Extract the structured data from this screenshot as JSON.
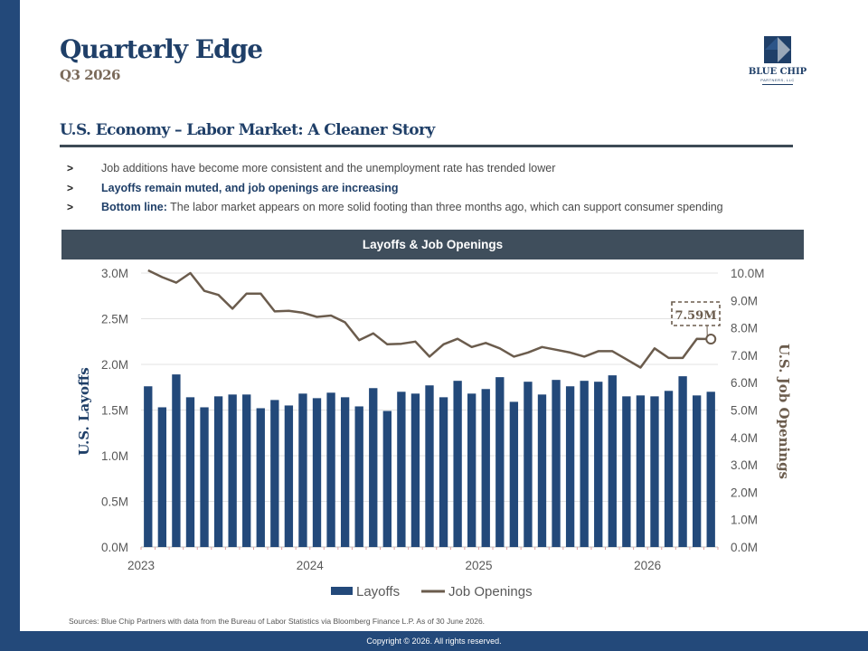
{
  "header": {
    "title": "Quarterly Edge",
    "subtitle": "Q3 2026",
    "logo_name": "BLUE CHIP",
    "logo_sub": "PARTNERS, LLC"
  },
  "section": {
    "title": "U.S. Economy – Labor Market: A Cleaner Story"
  },
  "bullets": [
    {
      "marker": ">",
      "lead": "",
      "text": "Job additions have become more consistent and the unemployment rate has trended lower"
    },
    {
      "marker": ">",
      "lead": "Layoffs remain muted, and job openings are increasing",
      "text": ""
    },
    {
      "marker": ">",
      "lead": "Bottom line:",
      "text": " The labor market appears on more solid footing than three months ago, which can support consumer spending"
    }
  ],
  "chart_header": "Layoffs & Job Openings",
  "sources": "Sources: Blue Chip Partners with data from the Bureau of Labor Statistics via Bloomberg Finance L.P. As of 30 June 2026.",
  "footer": "Copyright © 2026. All rights reserved.",
  "colors": {
    "brand": "#23497a",
    "bars": "#23497a",
    "line": "#6b5c4d",
    "header_band": "#3f4e5c"
  },
  "chart_data": {
    "type": "bar",
    "title": "Layoffs & Job Openings",
    "x_start": "2023-01",
    "frequency": "monthly",
    "x_ticks": [
      "2023",
      "2024",
      "2025",
      "2026"
    ],
    "y_left": {
      "label": "U.S. Layoffs",
      "ticks": [
        "0.0M",
        "0.5M",
        "1.0M",
        "1.5M",
        "2.0M",
        "2.5M",
        "3.0M"
      ],
      "range": [
        0,
        3.0
      ]
    },
    "y_right": {
      "label": "U.S. Job Openings",
      "ticks": [
        "0.0M",
        "1.0M",
        "2.0M",
        "3.0M",
        "4.0M",
        "5.0M",
        "6.0M",
        "7.0M",
        "8.0M",
        "9.0M",
        "10.0M"
      ],
      "range": [
        0,
        10.0
      ]
    },
    "series": [
      {
        "name": "Layoffs",
        "type": "bar",
        "axis": "left",
        "values": [
          1.76,
          1.53,
          1.89,
          1.64,
          1.53,
          1.65,
          1.67,
          1.67,
          1.52,
          1.61,
          1.55,
          1.68,
          1.63,
          1.69,
          1.64,
          1.54,
          1.74,
          1.49,
          1.7,
          1.68,
          1.77,
          1.64,
          1.82,
          1.68,
          1.73,
          1.86,
          1.59,
          1.81,
          1.67,
          1.83,
          1.76,
          1.82,
          1.81,
          1.88,
          1.65,
          1.66,
          1.65,
          1.71,
          1.87,
          1.66,
          1.7
        ]
      },
      {
        "name": "Job Openings",
        "type": "line",
        "axis": "right",
        "values": [
          10.1,
          9.85,
          9.65,
          10.0,
          9.35,
          9.2,
          8.7,
          9.25,
          9.25,
          8.6,
          8.62,
          8.55,
          8.4,
          8.45,
          8.2,
          7.55,
          7.8,
          7.4,
          7.42,
          7.5,
          6.95,
          7.4,
          7.6,
          7.3,
          7.45,
          7.25,
          6.95,
          7.1,
          7.3,
          7.2,
          7.1,
          6.95,
          7.15,
          7.15,
          6.85,
          6.55,
          7.25,
          6.9,
          6.9,
          7.6,
          7.59
        ]
      }
    ],
    "annotation": {
      "label": "7.59M",
      "series": "Job Openings",
      "value": 7.59
    },
    "legend": {
      "position": "bottom",
      "entries": [
        "Layoffs",
        "Job Openings"
      ]
    },
    "grid": true
  }
}
